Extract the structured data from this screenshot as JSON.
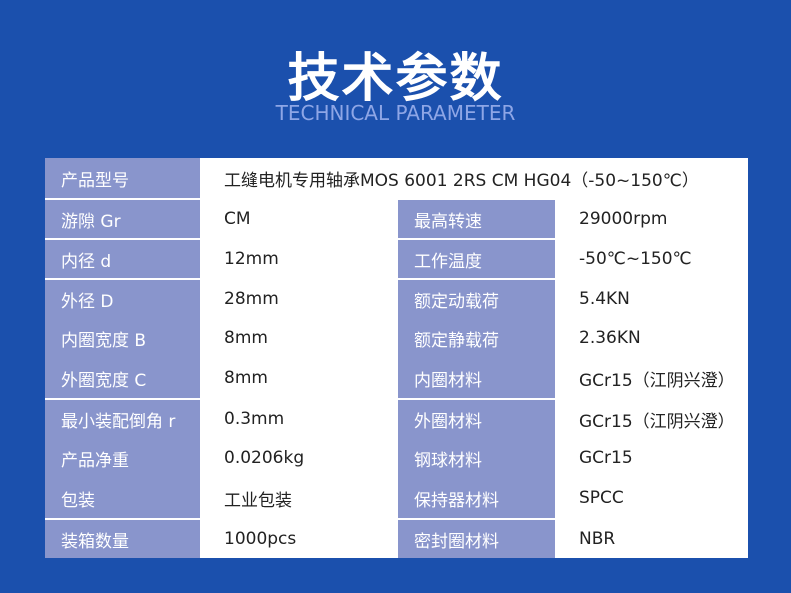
{
  "header": {
    "title": "技术参数",
    "subtitle": "TECHNICAL PARAMETER"
  },
  "table": {
    "rows": [
      [
        "产品型号",
        "工缝电机专用轴承MOS 6001 2RS CM HG04（-50~150℃）"
      ],
      [
        "游隙 Gr",
        "CM",
        "最高转速",
        "29000rpm"
      ],
      [
        "内径 d",
        "12mm",
        "工作温度",
        "-50℃~150℃"
      ],
      [
        "外径 D",
        "28mm",
        "额定动载荷",
        "5.4KN"
      ],
      [
        "内圈宽度 B",
        "8mm",
        "额定静载荷",
        "2.36KN"
      ],
      [
        "外圈宽度 C",
        "8mm",
        "内圈材料",
        "GCr15（江阴兴澄）"
      ],
      [
        "最小装配倒角 r",
        "0.3mm",
        "外圈材料",
        "GCr15（江阴兴澄）"
      ],
      [
        "产品净重",
        "0.0206kg",
        "钢球材料",
        "GCr15"
      ],
      [
        "包装",
        "工业包装",
        "保持器材料",
        "SPCC"
      ],
      [
        "装箱数量",
        "1000pcs",
        "密封圈材料",
        "NBR"
      ]
    ]
  }
}
